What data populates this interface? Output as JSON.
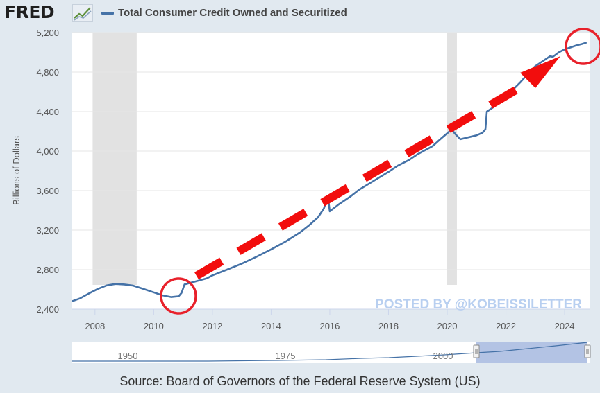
{
  "header": {
    "logo_text": "FRED",
    "logo_icon": "line-chart-icon",
    "series_label": "Total Consumer Credit Owned and Securitized"
  },
  "colors": {
    "series": "#4572a7",
    "recession": "#e2e2e2",
    "arrow": "#f20d0d",
    "circle": "#e8212b",
    "watermark": "#b8cff0",
    "navigator_fill": "#b3c3e4"
  },
  "watermark": "POSTED BY @KOBEISSILETTER",
  "source": "Source: Board of Governors of the Federal Reserve System (US)",
  "chart_data": {
    "type": "line",
    "ylabel": "Billions of Dollars",
    "ylim": [
      2400,
      5200
    ],
    "xlim": [
      2007.2,
      2024.85
    ],
    "yticks": [
      "2,400",
      "2,800",
      "3,200",
      "3,600",
      "4,000",
      "4,400",
      "4,800",
      "5,200"
    ],
    "xticks": [
      "2008",
      "2010",
      "2012",
      "2014",
      "2016",
      "2018",
      "2020",
      "2022",
      "2024"
    ],
    "grid": "horizontal",
    "recessions": [
      [
        2007.92,
        2009.42
      ],
      [
        2020.0,
        2020.33
      ]
    ],
    "series": [
      {
        "values": [
          [
            2007.2,
            2478
          ],
          [
            2007.5,
            2510
          ],
          [
            2007.8,
            2560
          ],
          [
            2008.1,
            2605
          ],
          [
            2008.4,
            2640
          ],
          [
            2008.7,
            2655
          ],
          [
            2009.0,
            2650
          ],
          [
            2009.3,
            2638
          ],
          [
            2009.6,
            2610
          ],
          [
            2010.0,
            2570
          ],
          [
            2010.3,
            2540
          ],
          [
            2010.6,
            2522
          ],
          [
            2010.85,
            2530
          ],
          [
            2010.95,
            2565
          ],
          [
            2011.05,
            2650
          ],
          [
            2011.4,
            2678
          ],
          [
            2011.8,
            2710
          ],
          [
            2012.0,
            2742
          ],
          [
            2012.5,
            2800
          ],
          [
            2013.0,
            2860
          ],
          [
            2013.5,
            2930
          ],
          [
            2014.0,
            3005
          ],
          [
            2014.5,
            3085
          ],
          [
            2015.0,
            3180
          ],
          [
            2015.3,
            3250
          ],
          [
            2015.6,
            3330
          ],
          [
            2015.8,
            3420
          ],
          [
            2015.9,
            3505
          ],
          [
            2015.95,
            3510
          ],
          [
            2016.0,
            3390
          ],
          [
            2016.3,
            3460
          ],
          [
            2016.7,
            3540
          ],
          [
            2017.0,
            3610
          ],
          [
            2017.5,
            3700
          ],
          [
            2018.0,
            3790
          ],
          [
            2018.3,
            3850
          ],
          [
            2018.7,
            3910
          ],
          [
            2019.0,
            3970
          ],
          [
            2019.5,
            4050
          ],
          [
            2019.8,
            4130
          ],
          [
            2020.1,
            4205
          ],
          [
            2020.2,
            4200
          ],
          [
            2020.3,
            4165
          ],
          [
            2020.45,
            4120
          ],
          [
            2020.8,
            4145
          ],
          [
            2021.0,
            4160
          ],
          [
            2021.2,
            4185
          ],
          [
            2021.3,
            4220
          ],
          [
            2021.35,
            4400
          ],
          [
            2021.6,
            4450
          ],
          [
            2021.9,
            4520
          ],
          [
            2022.2,
            4610
          ],
          [
            2022.5,
            4700
          ],
          [
            2022.8,
            4800
          ],
          [
            2023.0,
            4860
          ],
          [
            2023.3,
            4920
          ],
          [
            2023.5,
            4960
          ],
          [
            2023.6,
            4955
          ],
          [
            2023.8,
            5000
          ],
          [
            2024.0,
            5030
          ],
          [
            2024.2,
            5050
          ],
          [
            2024.4,
            5070
          ],
          [
            2024.6,
            5085
          ],
          [
            2024.75,
            5100
          ]
        ]
      }
    ],
    "navigator": {
      "ticks": [
        "1950",
        "1975",
        "2000"
      ]
    }
  }
}
